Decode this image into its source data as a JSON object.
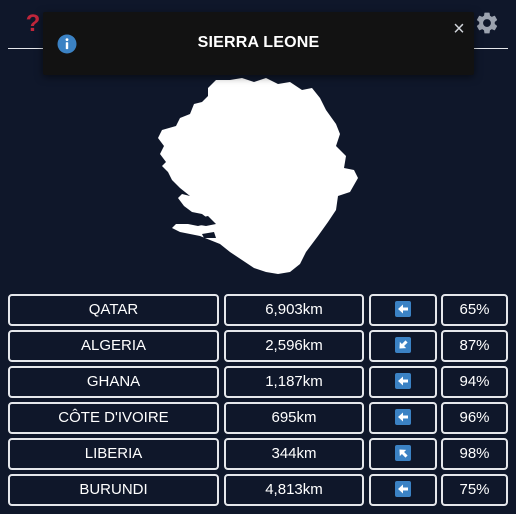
{
  "header": {
    "help_icon": "question-mark-icon",
    "help_glyph": "?",
    "settings_icon": "gear-icon"
  },
  "toast": {
    "icon": "info-icon",
    "title": "SIERRA LEONE",
    "close_glyph": "×"
  },
  "map": {
    "country": "sierra-leone-silhouette",
    "fill": "#ffffff"
  },
  "guesses": [
    {
      "name": "QATAR",
      "distance": "6,903km",
      "direction": "west",
      "angle": 180,
      "percent": "65%"
    },
    {
      "name": "ALGERIA",
      "distance": "2,596km",
      "direction": "south-west",
      "angle": 135,
      "percent": "87%"
    },
    {
      "name": "GHANA",
      "distance": "1,187km",
      "direction": "west",
      "angle": 180,
      "percent": "94%"
    },
    {
      "name": "CÔTE D'IVOIRE",
      "distance": "695km",
      "direction": "west",
      "angle": 180,
      "percent": "96%"
    },
    {
      "name": "LIBERIA",
      "distance": "344km",
      "direction": "north-west",
      "angle": 225,
      "percent": "98%"
    },
    {
      "name": "BURUNDI",
      "distance": "4,813km",
      "direction": "west",
      "angle": 180,
      "percent": "75%"
    }
  ],
  "colors": {
    "background": "#0f172a",
    "help": "#c0263b",
    "info": "#3b82c4",
    "arrow_bg": "#3b82c4"
  }
}
